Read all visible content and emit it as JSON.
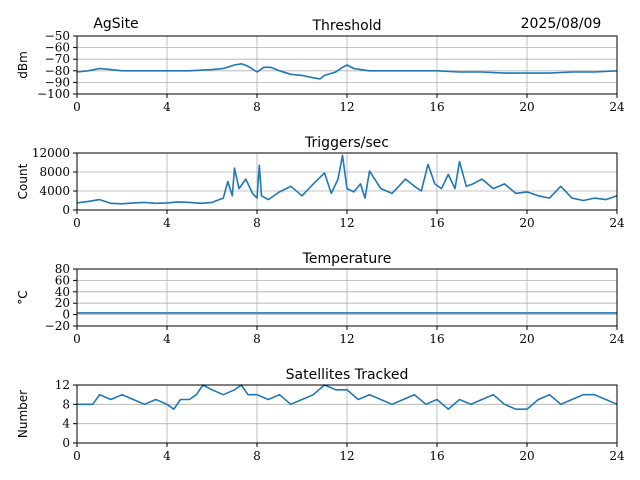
{
  "header": {
    "site": "AgSite",
    "date": "2025/08/09"
  },
  "colors": {
    "line": "#1f77b4",
    "grid": "#b0b0b0",
    "axes": "#000000"
  },
  "chart_data": [
    {
      "type": "line",
      "title": "Threshold",
      "ylabel": "dBm",
      "xlim": [
        0,
        24
      ],
      "ylim": [
        -100,
        -50
      ],
      "xticks": [
        0,
        4,
        8,
        12,
        16,
        20,
        24
      ],
      "yticks": [
        -100,
        -90,
        -80,
        -70,
        -60,
        -50
      ],
      "ytick_labels": [
        "−100",
        "−90",
        "−80",
        "−70",
        "−60",
        "−50"
      ],
      "grid": true,
      "series": [
        {
          "x": [
            0,
            0.5,
            1,
            1.5,
            2,
            3,
            4,
            5,
            6,
            6.5,
            7,
            7.3,
            7.6,
            8,
            8.3,
            8.6,
            9,
            9.5,
            10,
            10.5,
            10.8,
            11,
            11.5,
            11.8,
            12,
            12.3,
            12.6,
            13,
            14,
            15,
            16,
            17,
            18,
            19,
            20,
            21,
            22,
            23,
            24
          ],
          "y": [
            -81,
            -80,
            -78,
            -79,
            -80,
            -80,
            -80,
            -80,
            -79,
            -78,
            -75,
            -74,
            -76,
            -81,
            -77,
            -77,
            -80,
            -83,
            -84,
            -86,
            -87,
            -84,
            -81,
            -77,
            -75,
            -78,
            -79,
            -80,
            -80,
            -80,
            -80,
            -81,
            -81,
            -82,
            -82,
            -82,
            -81,
            -81,
            -80
          ]
        }
      ]
    },
    {
      "type": "line",
      "title": "Triggers/sec",
      "ylabel": "Count",
      "xlim": [
        0,
        24
      ],
      "ylim": [
        0,
        12000
      ],
      "xticks": [
        0,
        4,
        8,
        12,
        16,
        20,
        24
      ],
      "yticks": [
        0,
        4000,
        8000,
        12000
      ],
      "ytick_labels": [
        "0",
        "4000",
        "8000",
        "12000"
      ],
      "grid": true,
      "series": [
        {
          "x": [
            0,
            0.5,
            1,
            1.5,
            2,
            2.5,
            3,
            3.5,
            4,
            4.5,
            5,
            5.5,
            6,
            6.5,
            6.7,
            6.9,
            7,
            7.2,
            7.5,
            7.8,
            8,
            8.1,
            8.2,
            8.5,
            9,
            9.5,
            10,
            10.5,
            11,
            11.3,
            11.6,
            11.8,
            12,
            12.3,
            12.6,
            12.8,
            13,
            13.5,
            14,
            14.3,
            14.6,
            15,
            15.3,
            15.6,
            15.9,
            16.2,
            16.5,
            16.8,
            17,
            17.3,
            17.6,
            18,
            18.5,
            19,
            19.5,
            20,
            20.5,
            21,
            21.5,
            22,
            22.5,
            23,
            23.5,
            24
          ],
          "y": [
            1500,
            1800,
            2200,
            1400,
            1300,
            1500,
            1600,
            1400,
            1500,
            1700,
            1600,
            1400,
            1600,
            2500,
            6000,
            3000,
            8800,
            4500,
            6500,
            3500,
            2500,
            9400,
            3000,
            2200,
            3800,
            5000,
            3000,
            5500,
            7800,
            3500,
            6500,
            11500,
            4500,
            3800,
            5500,
            2500,
            8200,
            4500,
            3500,
            5000,
            6500,
            5000,
            4000,
            9600,
            5500,
            4500,
            7500,
            4500,
            10200,
            5000,
            5500,
            6500,
            4500,
            5500,
            3500,
            3800,
            3000,
            2500,
            5000,
            2500,
            2000,
            2500,
            2200,
            3000
          ]
        }
      ]
    },
    {
      "type": "line",
      "title": "Temperature",
      "ylabel": "°C",
      "xlim": [
        0,
        24
      ],
      "ylim": [
        -20,
        80
      ],
      "xticks": [
        0,
        4,
        8,
        12,
        16,
        20,
        24
      ],
      "yticks": [
        -20,
        0,
        20,
        40,
        60,
        80
      ],
      "ytick_labels": [
        "−20",
        "0",
        "20",
        "40",
        "60",
        "80"
      ],
      "grid": true,
      "series": [
        {
          "x": [
            0,
            24
          ],
          "y": [
            3,
            3
          ]
        }
      ]
    },
    {
      "type": "line",
      "title": "Satellites Tracked",
      "ylabel": "Number",
      "xlim": [
        0,
        24
      ],
      "ylim": [
        0,
        12
      ],
      "xticks": [
        0,
        4,
        8,
        12,
        16,
        20,
        24
      ],
      "yticks": [
        0,
        4,
        8,
        12
      ],
      "ytick_labels": [
        "0",
        "4",
        "8",
        "12"
      ],
      "grid": true,
      "series": [
        {
          "x": [
            0,
            0.7,
            1,
            1.5,
            2,
            2.5,
            3,
            3.5,
            4,
            4.3,
            4.6,
            5,
            5.3,
            5.6,
            6,
            6.5,
            7,
            7.3,
            7.6,
            8,
            8.5,
            9,
            9.5,
            10,
            10.5,
            11,
            11.5,
            12,
            12.5,
            13,
            13.5,
            14,
            14.5,
            15,
            15.5,
            16,
            16.5,
            17,
            17.5,
            18,
            18.5,
            19,
            19.5,
            20,
            20.5,
            21,
            21.5,
            22,
            22.5,
            23,
            23.5,
            24
          ],
          "y": [
            8,
            8,
            10,
            9,
            10,
            9,
            8,
            9,
            8,
            7,
            9,
            9,
            10,
            12,
            11,
            10,
            11,
            12,
            10,
            10,
            9,
            10,
            8,
            9,
            10,
            12,
            11,
            11,
            9,
            10,
            9,
            8,
            9,
            10,
            8,
            9,
            7,
            9,
            8,
            9,
            10,
            8,
            7,
            7,
            9,
            10,
            8,
            9,
            10,
            10,
            9,
            8
          ]
        }
      ]
    }
  ]
}
